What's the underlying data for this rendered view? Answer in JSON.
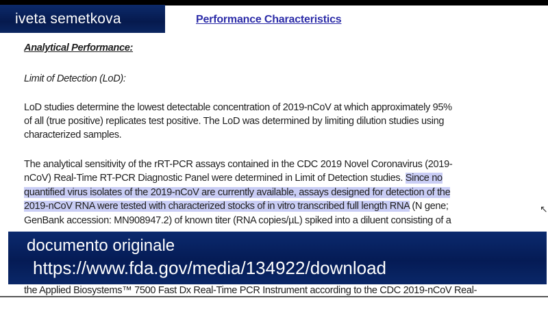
{
  "presenter_name": "iveta semetkova",
  "document": {
    "title": "Performance Characteristics",
    "heading": "Analytical Performance:",
    "subheading": "Limit of Detection (LoD):",
    "para1": [
      "LoD studies determine the lowest detectable concentration of 2019-nCoV at which approximately 95%",
      "of all (true positive) replicates test positive.  The LoD was determined by limiting dilution studies using",
      "characterized samples."
    ],
    "para2": {
      "l1": "The analytical sensitivity of the rRT-PCR assays contained in the CDC 2019 Novel Coronavirus (2019-",
      "l2a": "nCoV) Real-Time RT-PCR Diagnostic Panel were determined in Limit of Detection studies. ",
      "l2b": "Since no",
      "l3": "quantified virus isolates of the 2019-nCoV are currently available, assays designed for detection of the",
      "l4a": "2019-nCoV RNA were tested with characterized stocks of in vitro transcribed full length RNA",
      "l4b": " (N gene;",
      "l5": "GenBank accession: MN908947.2) of known titer (RNA copies/µL) spiked into a diluent consisting of a",
      "l6": "the Applied Biosystems™ 7500 Fast Dx Real-Time PCR Instrument according to the CDC 2019-nCoV Real-"
    }
  },
  "overlay": {
    "line1": "documento originale",
    "line2": "https://www.fda.gov/media/134922/download"
  },
  "colors": {
    "highlight": "#c9cdf5",
    "title": "#2c2ca8",
    "overlay": "#061c56"
  }
}
